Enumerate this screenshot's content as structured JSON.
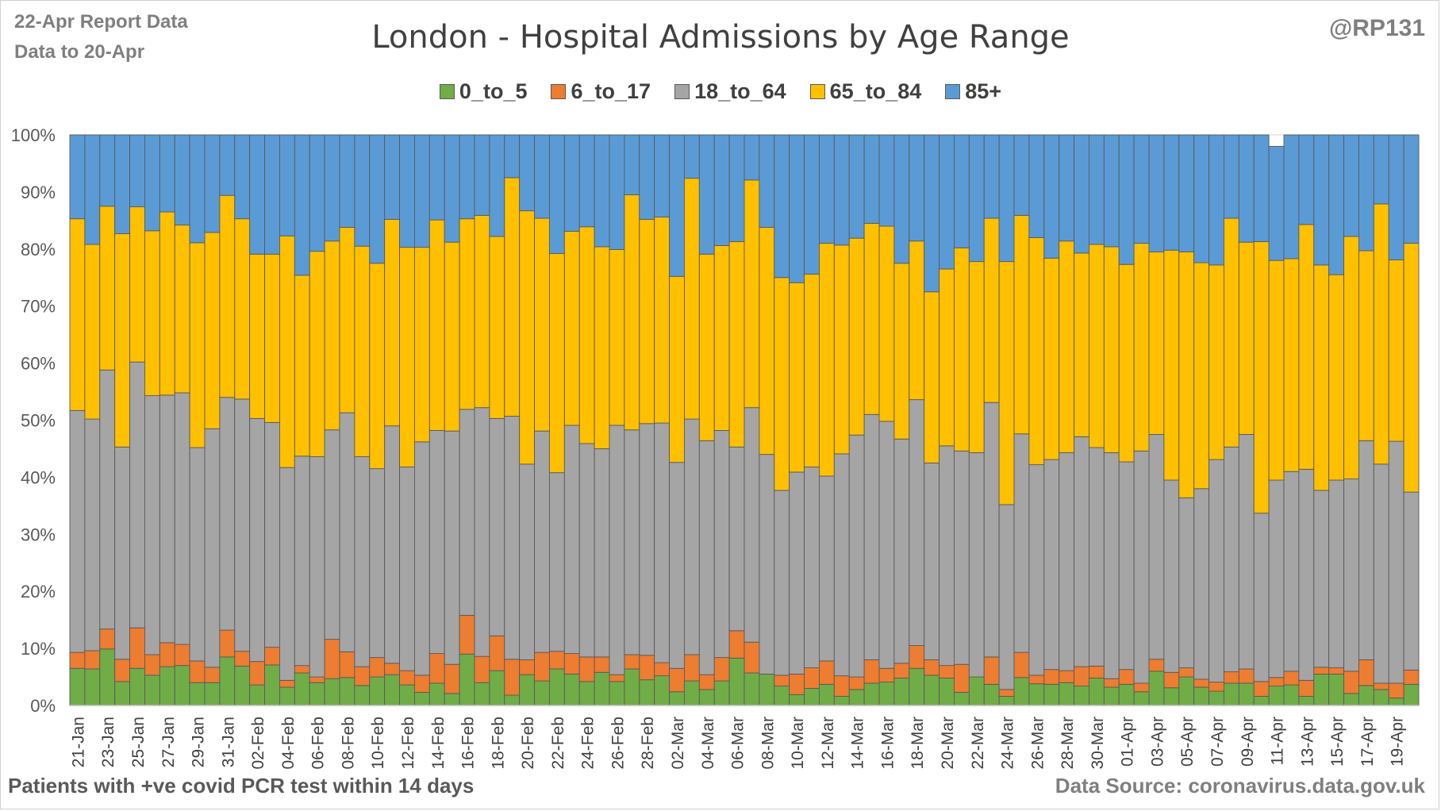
{
  "header": {
    "report_date": "22-Apr Report Data",
    "data_to": "Data to 20-Apr",
    "handle": "@RP131"
  },
  "footer": {
    "note": "Patients with  +ve covid PCR test within 14 days",
    "source": "Data Source: coronavirus.data.gov.uk"
  },
  "chart_data": {
    "type": "bar",
    "stacked": true,
    "normalized": "percent",
    "title": "London - Hospital Admissions by Age Range",
    "xlabel": "",
    "ylabel": "",
    "ylim": [
      0,
      100
    ],
    "yticks": [
      "0%",
      "10%",
      "20%",
      "30%",
      "40%",
      "50%",
      "60%",
      "70%",
      "80%",
      "90%",
      "100%"
    ],
    "grid": true,
    "legend_position": "top",
    "x_tick_labels": [
      "21-Jan",
      "23-Jan",
      "25-Jan",
      "27-Jan",
      "29-Jan",
      "31-Jan",
      "02-Feb",
      "04-Feb",
      "06-Feb",
      "08-Feb",
      "10-Feb",
      "12-Feb",
      "14-Feb",
      "16-Feb",
      "18-Feb",
      "20-Feb",
      "22-Feb",
      "24-Feb",
      "26-Feb",
      "28-Feb",
      "02-Mar",
      "04-Mar",
      "06-Mar",
      "08-Mar",
      "10-Mar",
      "12-Mar",
      "14-Mar",
      "16-Mar",
      "18-Mar",
      "20-Mar",
      "22-Mar",
      "24-Mar",
      "26-Mar",
      "28-Mar",
      "30-Mar",
      "01-Apr",
      "03-Apr",
      "05-Apr",
      "07-Apr",
      "09-Apr",
      "11-Apr",
      "13-Apr",
      "15-Apr",
      "17-Apr",
      "19-Apr"
    ],
    "categories": [
      "21-Jan",
      "22-Jan",
      "23-Jan",
      "24-Jan",
      "25-Jan",
      "26-Jan",
      "27-Jan",
      "28-Jan",
      "29-Jan",
      "30-Jan",
      "31-Jan",
      "01-Feb",
      "02-Feb",
      "03-Feb",
      "04-Feb",
      "05-Feb",
      "06-Feb",
      "07-Feb",
      "08-Feb",
      "09-Feb",
      "10-Feb",
      "11-Feb",
      "12-Feb",
      "13-Feb",
      "14-Feb",
      "15-Feb",
      "16-Feb",
      "17-Feb",
      "18-Feb",
      "19-Feb",
      "20-Feb",
      "21-Feb",
      "22-Feb",
      "23-Feb",
      "24-Feb",
      "25-Feb",
      "26-Feb",
      "27-Feb",
      "28-Feb",
      "01-Mar",
      "02-Mar",
      "03-Mar",
      "04-Mar",
      "05-Mar",
      "06-Mar",
      "07-Mar",
      "08-Mar",
      "09-Mar",
      "10-Mar",
      "11-Mar",
      "12-Mar",
      "13-Mar",
      "14-Mar",
      "15-Mar",
      "16-Mar",
      "17-Mar",
      "18-Mar",
      "19-Mar",
      "20-Mar",
      "21-Mar",
      "22-Mar",
      "23-Mar",
      "24-Mar",
      "25-Mar",
      "26-Mar",
      "27-Mar",
      "28-Mar",
      "29-Mar",
      "30-Mar",
      "31-Mar",
      "01-Apr",
      "02-Apr",
      "03-Apr",
      "04-Apr",
      "05-Apr",
      "06-Apr",
      "07-Apr",
      "08-Apr",
      "09-Apr",
      "10-Apr",
      "11-Apr",
      "12-Apr",
      "13-Apr",
      "14-Apr",
      "15-Apr",
      "16-Apr",
      "17-Apr",
      "18-Apr",
      "19-Apr",
      "20-Apr"
    ],
    "series": [
      {
        "name": "0_to_5",
        "color": "#70ad47",
        "values": [
          6.5,
          6.4,
          9.9,
          4.2,
          6.5,
          5.3,
          6.8,
          7.0,
          4.0,
          4.0,
          8.5,
          6.9,
          3.6,
          7.1,
          3.2,
          5.7,
          4.0,
          4.7,
          4.9,
          3.5,
          5.0,
          5.4,
          3.6,
          2.3,
          3.9,
          2.1,
          9.0,
          4.0,
          6.1,
          1.8,
          5.4,
          4.3,
          6.4,
          5.5,
          4.2,
          5.8,
          4.2,
          6.4,
          4.5,
          5.2,
          2.4,
          4.3,
          2.8,
          4.3,
          8.3,
          5.7,
          5.5,
          3.4,
          1.9,
          3.0,
          3.7,
          1.6,
          2.8,
          3.9,
          4.1,
          4.8,
          6.5,
          5.3,
          4.8,
          2.3,
          5.0,
          3.7,
          1.6,
          4.9,
          3.8,
          3.7,
          4.0,
          3.4,
          4.8,
          3.2,
          3.7,
          2.4,
          6.0,
          3.1,
          5.0,
          3.2,
          2.5,
          3.9,
          3.9,
          1.6,
          3.4,
          3.6,
          1.6,
          5.5,
          5.5,
          2.1,
          3.5,
          2.8,
          1.3,
          3.7
        ]
      },
      {
        "name": "6_to_17",
        "color": "#ed7d31",
        "values": [
          2.8,
          3.2,
          3.5,
          3.9,
          7.1,
          3.6,
          4.2,
          3.7,
          3.8,
          2.7,
          4.7,
          2.6,
          4.1,
          3.1,
          1.2,
          1.3,
          1.0,
          6.9,
          4.5,
          3.3,
          3.4,
          2.0,
          2.5,
          3.0,
          5.2,
          5.1,
          6.8,
          4.6,
          6.1,
          6.3,
          2.6,
          5.0,
          3.1,
          3.6,
          4.3,
          2.7,
          1.2,
          2.5,
          4.3,
          2.3,
          4.1,
          4.6,
          2.6,
          4.1,
          4.8,
          5.4,
          0.0,
          1.9,
          3.6,
          3.6,
          4.1,
          3.6,
          2.2,
          4.1,
          2.4,
          2.6,
          4.0,
          2.7,
          2.2,
          4.9,
          0.0,
          4.8,
          1.2,
          4.4,
          1.5,
          2.6,
          2.1,
          3.4,
          2.1,
          1.5,
          2.6,
          1.5,
          2.1,
          2.7,
          1.6,
          1.4,
          1.6,
          2.0,
          2.5,
          2.6,
          1.5,
          2.4,
          2.8,
          1.2,
          1.1,
          3.9,
          4.5,
          1.1,
          2.6,
          2.5
        ]
      },
      {
        "name": "18_to_64",
        "color": "#a5a5a5",
        "values": [
          42.4,
          40.6,
          45.4,
          37.2,
          46.6,
          45.4,
          43.4,
          44.1,
          37.4,
          41.8,
          40.8,
          44.2,
          42.6,
          39.4,
          37.3,
          36.7,
          38.6,
          36.7,
          41.9,
          36.8,
          33.1,
          41.6,
          35.7,
          40.9,
          39.1,
          40.9,
          36.1,
          43.6,
          38.1,
          42.6,
          34.3,
          38.8,
          31.3,
          40.0,
          37.4,
          36.5,
          43.7,
          39.4,
          40.6,
          42.0,
          36.1,
          41.3,
          41.0,
          39.8,
          32.2,
          41.1,
          38.5,
          32.4,
          35.4,
          35.2,
          32.4,
          38.9,
          42.4,
          43.0,
          43.3,
          39.3,
          43.1,
          34.5,
          38.5,
          37.4,
          39.3,
          44.6,
          32.4,
          38.3,
          36.9,
          36.8,
          38.2,
          40.3,
          38.3,
          39.6,
          36.4,
          40.7,
          39.4,
          33.7,
          29.8,
          33.4,
          39.0,
          39.4,
          41.1,
          29.5,
          34.6,
          35.0,
          37.0,
          31.0,
          32.9,
          33.7,
          38.4,
          38.4,
          42.4,
          31.2
        ]
      },
      {
        "name": "65_to_84",
        "color": "#ffc000",
        "values": [
          33.6,
          30.6,
          28.7,
          37.4,
          27.2,
          28.9,
          32.1,
          29.4,
          35.9,
          34.4,
          35.4,
          31.6,
          28.8,
          29.5,
          40.6,
          31.7,
          36.0,
          33.1,
          32.5,
          36.9,
          36.0,
          36.2,
          38.5,
          34.1,
          36.9,
          33.1,
          33.4,
          33.7,
          31.9,
          41.8,
          44.4,
          37.3,
          38.4,
          34.0,
          38.0,
          35.4,
          30.8,
          41.2,
          35.8,
          36.1,
          32.6,
          42.2,
          32.7,
          32.4,
          36.0,
          39.9,
          39.8,
          37.3,
          33.2,
          33.8,
          40.8,
          36.6,
          34.5,
          33.5,
          34.2,
          30.8,
          27.8,
          30.0,
          31.0,
          35.6,
          33.5,
          32.3,
          42.6,
          38.3,
          39.8,
          35.3,
          37.1,
          32.2,
          35.6,
          36.1,
          34.6,
          36.4,
          32.0,
          40.3,
          43.1,
          39.6,
          34.1,
          40.1,
          33.7,
          47.6,
          38.5,
          37.3,
          42.9,
          39.5,
          36.0,
          42.5,
          33.3,
          45.6,
          31.8,
          43.6
        ]
      },
      {
        "name": "85+",
        "color": "#5b9bd5",
        "values": [
          14.7,
          19.2,
          12.5,
          17.3,
          12.6,
          16.8,
          13.5,
          15.8,
          18.9,
          17.1,
          10.6,
          14.7,
          20.9,
          20.9,
          17.7,
          24.6,
          20.4,
          18.6,
          16.2,
          19.5,
          22.5,
          14.8,
          19.7,
          19.7,
          14.9,
          18.8,
          14.7,
          14.1,
          17.8,
          7.5,
          13.3,
          14.6,
          20.8,
          16.9,
          16.1,
          19.6,
          20.1,
          10.5,
          14.8,
          14.4,
          24.8,
          7.6,
          20.9,
          19.4,
          18.7,
          7.9,
          16.2,
          25.0,
          25.9,
          24.4,
          19.0,
          19.3,
          18.1,
          15.5,
          16.0,
          22.5,
          18.6,
          27.5,
          23.5,
          19.8,
          22.2,
          14.6,
          22.2,
          14.1,
          18.0,
          21.6,
          18.6,
          20.7,
          19.2,
          19.6,
          22.7,
          19.0,
          20.5,
          20.2,
          20.5,
          22.4,
          22.8,
          14.6,
          18.8,
          18.7,
          20.0,
          21.7,
          15.7,
          22.8,
          24.5,
          17.8,
          20.3,
          12.1,
          21.9,
          19.0
        ]
      }
    ]
  }
}
